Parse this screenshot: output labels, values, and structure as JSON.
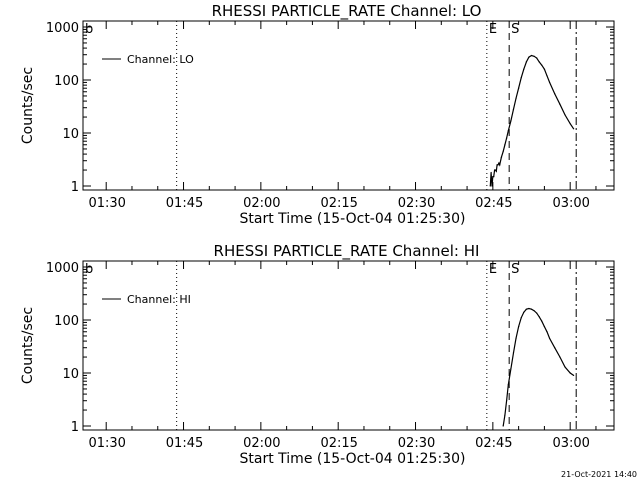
{
  "footer": {
    "timestamp": "21-Oct-2021 14:40"
  },
  "chart_data": [
    {
      "type": "line",
      "title": "RHESSI PARTICLE_RATE Channel: LO",
      "xlabel": "Start Time (15-Oct-04 01:25:30)",
      "ylabel": "Counts/sec",
      "yscale": "log",
      "ylim": [
        1,
        1000
      ],
      "xlim": [
        "01:25:30",
        "03:08:30"
      ],
      "xticks": [
        "01:30",
        "01:45",
        "02:00",
        "02:15",
        "02:30",
        "02:45",
        "03:00"
      ],
      "yticks": [
        "1",
        "10",
        "100",
        "1000"
      ],
      "legend": {
        "position": "top-left",
        "entries": [
          "Channel: LO"
        ]
      },
      "marker_letters": [
        "b",
        "E",
        "S"
      ],
      "vlines": [
        {
          "x": "01:43:40",
          "style": "dotted"
        },
        {
          "x": "02:43:50",
          "style": "dotted"
        },
        {
          "x": "02:48:10",
          "style": "dashed"
        },
        {
          "x": "03:01:10",
          "style": "dashdot"
        }
      ],
      "series": [
        {
          "name": "Channel: LO",
          "x": [
            "02:44:30",
            "02:44:40",
            "02:44:50",
            "02:45:00",
            "02:45:10",
            "02:45:20",
            "02:45:30",
            "02:45:40",
            "02:45:50",
            "02:46:00",
            "02:46:10",
            "02:46:20",
            "02:46:40",
            "02:47:00",
            "02:47:20",
            "02:47:40",
            "02:48:00",
            "02:48:30",
            "02:49:00",
            "02:49:30",
            "02:50:00",
            "02:50:30",
            "02:51:00",
            "02:51:30",
            "02:52:00",
            "02:52:30",
            "02:53:00",
            "02:53:30",
            "02:54:00",
            "02:54:30",
            "02:55:00",
            "02:55:30",
            "02:56:00",
            "02:57:00",
            "02:58:00",
            "02:59:00",
            "03:00:00",
            "03:00:40"
          ],
          "values": [
            1,
            1.8,
            1,
            1.5,
            1.5,
            2,
            2,
            1.9,
            2.5,
            2.5,
            2.7,
            2.5,
            3.5,
            4.5,
            6,
            8,
            11,
            17,
            28,
            45,
            70,
            110,
            160,
            220,
            270,
            290,
            280,
            260,
            220,
            190,
            160,
            120,
            90,
            55,
            35,
            22,
            15,
            12
          ]
        }
      ]
    },
    {
      "type": "line",
      "title": "RHESSI PARTICLE_RATE Channel: HI",
      "xlabel": "Start Time (15-Oct-04 01:25:30)",
      "ylabel": "Counts/sec",
      "yscale": "log",
      "ylim": [
        1,
        1000
      ],
      "xlim": [
        "01:25:30",
        "03:08:30"
      ],
      "xticks": [
        "01:30",
        "01:45",
        "02:00",
        "02:15",
        "02:30",
        "02:45",
        "03:00"
      ],
      "yticks": [
        "1",
        "10",
        "100",
        "1000"
      ],
      "legend": {
        "position": "top-left",
        "entries": [
          "Channel: HI"
        ]
      },
      "marker_letters": [
        "b",
        "E",
        "S"
      ],
      "vlines": [
        {
          "x": "01:43:40",
          "style": "dotted"
        },
        {
          "x": "02:43:50",
          "style": "dotted"
        },
        {
          "x": "02:48:10",
          "style": "dashed"
        },
        {
          "x": "03:01:10",
          "style": "dashdot"
        }
      ],
      "series": [
        {
          "name": "Channel: HI",
          "x": [
            "02:47:00",
            "02:47:20",
            "02:47:40",
            "02:48:00",
            "02:48:30",
            "02:49:00",
            "02:49:30",
            "02:50:00",
            "02:50:30",
            "02:51:00",
            "02:51:30",
            "02:52:00",
            "02:52:30",
            "02:53:00",
            "02:53:30",
            "02:54:00",
            "02:54:30",
            "02:55:00",
            "02:55:30",
            "02:56:00",
            "02:57:00",
            "02:58:00",
            "02:59:00",
            "03:00:00",
            "03:00:40"
          ],
          "values": [
            1,
            1.6,
            3,
            6,
            12,
            24,
            45,
            75,
            110,
            140,
            160,
            165,
            160,
            150,
            135,
            115,
            95,
            75,
            60,
            45,
            30,
            20,
            13,
            10,
            9
          ]
        }
      ]
    }
  ]
}
